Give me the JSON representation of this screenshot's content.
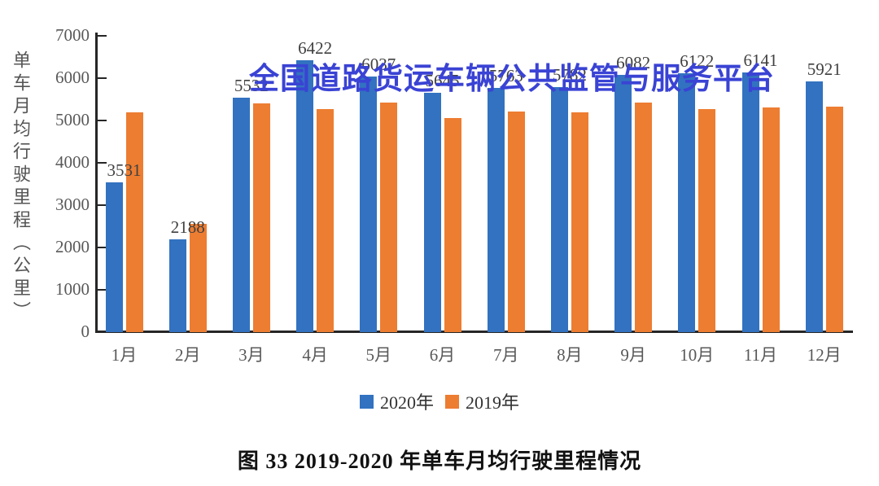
{
  "watermark": "全国道路货运车辆公共监管与服务平台",
  "watermark_color": "#3a43d4",
  "caption": "图 33  2019-2020 年单车月均行驶里程情况",
  "chart_data": {
    "type": "bar",
    "title": "图 33 2019-2020 年单车月均行驶里程情况",
    "categories": [
      "1月",
      "2月",
      "3月",
      "4月",
      "5月",
      "6月",
      "7月",
      "8月",
      "9月",
      "10月",
      "11月",
      "12月"
    ],
    "series": [
      {
        "name": "2020年",
        "color": "#3272c0",
        "values": [
          3531,
          2188,
          5532,
          6422,
          6037,
          5645,
          5763,
          5782,
          6082,
          6122,
          6141,
          5921
        ],
        "data_labels_visible": true
      },
      {
        "name": "2019年",
        "color": "#ed7d31",
        "values": [
          5190,
          2560,
          5400,
          5270,
          5415,
          5060,
          5210,
          5190,
          5420,
          5270,
          5300,
          5330
        ],
        "data_labels_visible": false,
        "note": "values estimated from bar heights; no labels shown in image"
      }
    ],
    "ylabel": "单车月均行驶里程（公里）",
    "xlabel": "",
    "ylim": [
      0,
      7000
    ],
    "ytick_step": 1000,
    "grid": false,
    "legend_position": "bottom",
    "axis_color": "#262626",
    "tick_label_color": "#595959",
    "value_label_color": "#404040"
  }
}
